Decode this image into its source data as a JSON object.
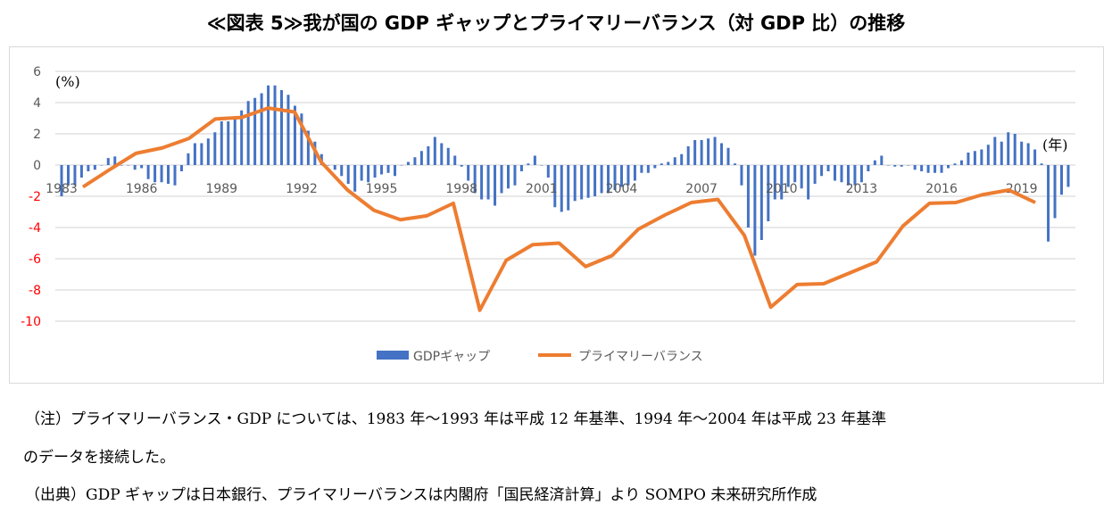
{
  "title": "≪図表 5≫我が国の GDP ギャップとプライマリーバランス（対 GDP 比）の推移",
  "chart_data": {
    "type": "bar+line",
    "title": "≪図表 5≫我が国の GDP ギャップとプライマリーバランス（対 GDP 比）の推移",
    "ylabel": "(%)",
    "xlabel": "(年)",
    "ylim": [
      -10,
      6
    ],
    "yticks": [
      6,
      4,
      2,
      0,
      -2,
      -4,
      -6,
      -8,
      -10
    ],
    "xtick_labels": [
      "1983",
      "1986",
      "1989",
      "1992",
      "1995",
      "1998",
      "2001",
      "2004",
      "2007",
      "2010",
      "2013",
      "2016",
      "2019"
    ],
    "grid": true,
    "legend_position": "bottom",
    "series": [
      {
        "name": "GDPギャップ",
        "type": "bar",
        "color": "#4472c4",
        "period_start": "1983Q1",
        "frequency": "quarterly",
        "values": [
          -2.0,
          -1.3,
          -1.3,
          -0.8,
          -0.4,
          -0.3,
          0,
          0.45,
          0.55,
          0,
          0,
          -0.3,
          -0.2,
          -0.9,
          -1.1,
          -1.1,
          -1.2,
          -1.3,
          -0.4,
          0.75,
          1.4,
          1.4,
          1.7,
          2.1,
          2.8,
          2.8,
          3.1,
          3.5,
          4.1,
          4.3,
          4.6,
          5.1,
          5.1,
          4.8,
          4.5,
          3.8,
          3.3,
          2.2,
          1.5,
          0.7,
          0,
          -0.3,
          -0.7,
          -1.2,
          -1.7,
          -1.0,
          -1.1,
          -0.8,
          -0.6,
          -0.5,
          -0.7,
          0,
          0.2,
          0.5,
          0.9,
          1.2,
          1.8,
          1.4,
          1.1,
          0.6,
          -0.1,
          -1.0,
          -1.8,
          -2.2,
          -2.2,
          -2.6,
          -1.8,
          -1.5,
          -1.3,
          -0.4,
          0.1,
          0.6,
          0,
          -0.8,
          -2.7,
          -3.0,
          -2.9,
          -2.3,
          -2.2,
          -2.1,
          -2.0,
          -1.8,
          -1.8,
          -1.6,
          -1.4,
          -1.3,
          -1.0,
          -0.5,
          -0.5,
          -0.2,
          0.1,
          0.2,
          0.5,
          0.7,
          1.2,
          1.6,
          1.6,
          1.7,
          1.8,
          1.4,
          1.1,
          0.1,
          -1.3,
          -4.0,
          -5.8,
          -4.8,
          -3.6,
          -2.2,
          -2.2,
          -1.4,
          -1.1,
          -1.5,
          -2.2,
          -1.2,
          -0.7,
          -0.4,
          -1.0,
          -1.1,
          -1.3,
          -1.3,
          -1.1,
          -0.4,
          0.3,
          0.6,
          0,
          -0.1,
          -0.1,
          0,
          -0.3,
          -0.4,
          -0.5,
          -0.5,
          -0.5,
          -0.2,
          0.1,
          0.3,
          0.8,
          0.9,
          1.0,
          1.3,
          1.8,
          1.5,
          2.1,
          2.0,
          1.5,
          1.4,
          1.0,
          0.1,
          -4.9,
          -3.4,
          -1.9,
          -1.4
        ]
      },
      {
        "name": "プライマリーバランス",
        "type": "line",
        "color": "#ed7d31",
        "x": [
          1983,
          1984,
          1985,
          1986,
          1987,
          1988,
          1989,
          1990,
          1991,
          1992,
          1993,
          1994,
          1995,
          1996,
          1997,
          1998,
          1999,
          2000,
          2001,
          2002,
          2003,
          2004,
          2005,
          2006,
          2007,
          2008,
          2009,
          2010,
          2011,
          2012,
          2013,
          2014,
          2015,
          2016,
          2017,
          2018,
          2019
        ],
        "values": [
          -1.4,
          -0.3,
          0.75,
          1.1,
          1.7,
          2.95,
          3.05,
          3.65,
          3.4,
          0.2,
          -1.6,
          -2.9,
          -3.5,
          -3.25,
          -2.45,
          -9.3,
          -6.1,
          -5.1,
          -5.0,
          -6.5,
          -5.8,
          -4.1,
          -3.2,
          -2.4,
          -2.2,
          -4.5,
          -9.1,
          -7.65,
          -7.6,
          -6.9,
          -6.2,
          -3.9,
          -2.45,
          -2.4,
          -1.9,
          -1.6,
          -2.4
        ]
      }
    ]
  },
  "notes": [
    "（注）プライマリーバランス・GDP については、1983 年～1993 年は平成 12 年基準、1994 年～2004 年は平成 23 年基準",
    "のデータを接続した。",
    "（出典）GDP ギャップは日本銀行、プライマリーバランスは内閣府「国民経済計算」より SOMPO 未来研究所作成"
  ]
}
